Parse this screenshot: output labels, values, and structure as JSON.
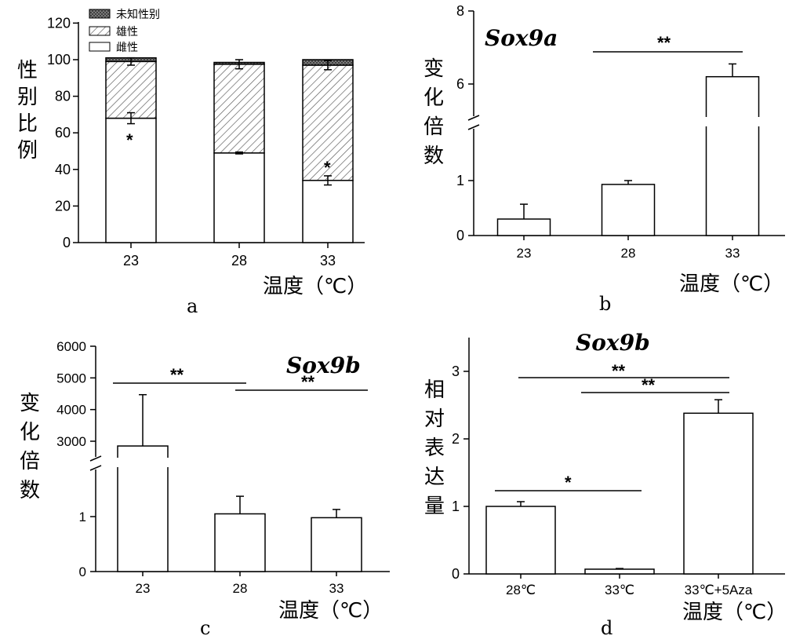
{
  "chart_data": [
    {
      "panel": "a",
      "type": "bar",
      "stacked": true,
      "categories": [
        "23",
        "28",
        "33"
      ],
      "series": [
        {
          "name": "雌性",
          "values": [
            68,
            49,
            34
          ],
          "errors": [
            3,
            0.5,
            2.5
          ]
        },
        {
          "name": "雄性",
          "values": [
            31,
            48.5,
            63
          ],
          "errors": [
            2,
            2.5,
            2.5
          ]
        },
        {
          "name": "未知性别",
          "values": [
            2,
            1,
            3
          ]
        }
      ],
      "ylabel": "性别比例",
      "xlabel": "温度（℃）",
      "ylim": [
        0,
        120
      ],
      "yticks": [
        0,
        20,
        40,
        60,
        80,
        100,
        120
      ],
      "annotations": [
        "*",
        "*"
      ],
      "legend_placement": "top-left"
    },
    {
      "panel": "b",
      "type": "bar",
      "title": "Sox9a",
      "categories": [
        "23",
        "28",
        "33"
      ],
      "values": [
        0.3,
        0.93,
        6.2
      ],
      "errors": [
        0.27,
        0.07,
        0.35
      ],
      "ylabel": "变化倍数",
      "xlabel": "温度（℃）",
      "axis_break": true,
      "yticks": [
        "0",
        "1",
        "6",
        "8"
      ],
      "annotations": [
        "**"
      ]
    },
    {
      "panel": "c",
      "type": "bar",
      "title": "Sox9b",
      "categories": [
        "23",
        "28",
        "33"
      ],
      "values": [
        2850,
        1.05,
        0.98
      ],
      "errors": [
        1620,
        0.32,
        0.15
      ],
      "ylabel": "变化倍数",
      "xlabel": "温度（℃）",
      "axis_break": true,
      "yticks": [
        "0",
        "1",
        "3000",
        "4000",
        "5000",
        "6000"
      ],
      "annotations": [
        "**",
        "**"
      ]
    },
    {
      "panel": "d",
      "type": "bar",
      "title": "Sox9b",
      "categories": [
        "28℃",
        "33℃",
        "33℃+5Aza"
      ],
      "values": [
        1.0,
        0.07,
        2.38
      ],
      "errors": [
        0.07,
        0.01,
        0.2
      ],
      "ylabel": "相对表达量",
      "xlabel": "温度（℃）",
      "ylim": [
        0,
        3.5
      ],
      "yticks": [
        0,
        1,
        2,
        3
      ],
      "annotations": [
        "*",
        "**",
        "**"
      ]
    }
  ]
}
